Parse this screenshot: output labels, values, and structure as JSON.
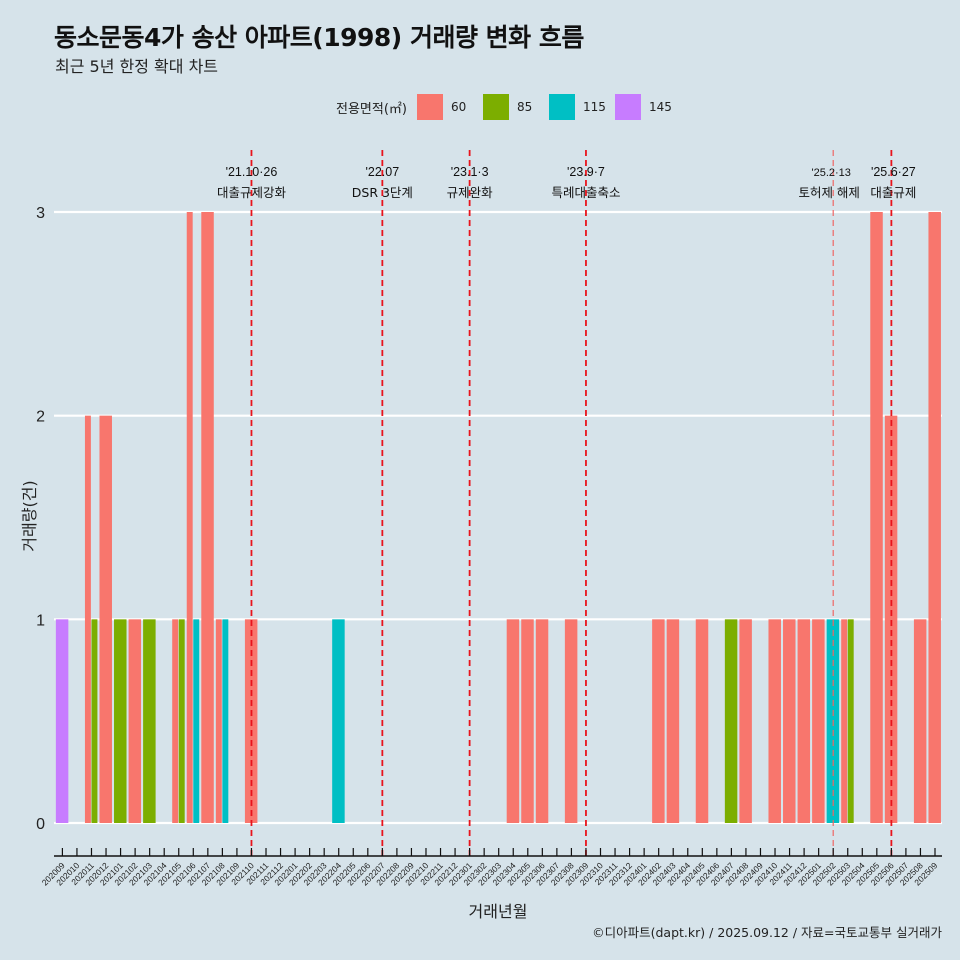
{
  "header": {
    "title": "동소문동4가 송산 아파트(1998) 거래량 변화 흐름",
    "subtitle": "최근 5년 한정 확대 차트"
  },
  "legend": {
    "title": "전용면적(㎡)",
    "items": [
      {
        "label": "60",
        "color": "#F8766D"
      },
      {
        "label": "85",
        "color": "#7CAE00"
      },
      {
        "label": "115",
        "color": "#00BFC4"
      },
      {
        "label": "145",
        "color": "#C77CFF"
      }
    ]
  },
  "footer": "©디아파트(dapt.kr) / 2025.09.12 / 자료=국토교통부 실거래가",
  "chart_data": {
    "type": "bar",
    "subtype": "dodged",
    "title": "동소문동4가 송산 아파트(1998) 거래량 변화 흐름",
    "subtitle": "최근 5년 한정 확대 차트",
    "xlabel": "거래년월",
    "ylabel": "거래량(건)",
    "ylim": [
      0,
      3
    ],
    "yticks": [
      0,
      1,
      2,
      3
    ],
    "grid": "horizontal",
    "legend_position": "top",
    "categories": [
      "202009",
      "202010",
      "202011",
      "202012",
      "202101",
      "202102",
      "202103",
      "202104",
      "202105",
      "202106",
      "202107",
      "202108",
      "202109",
      "202110",
      "202111",
      "202112",
      "202201",
      "202202",
      "202203",
      "202204",
      "202205",
      "202206",
      "202207",
      "202208",
      "202209",
      "202210",
      "202211",
      "202212",
      "202301",
      "202302",
      "202303",
      "202304",
      "202305",
      "202306",
      "202307",
      "202308",
      "202309",
      "202310",
      "202311",
      "202312",
      "202401",
      "202402",
      "202403",
      "202404",
      "202405",
      "202406",
      "202407",
      "202408",
      "202409",
      "202410",
      "202411",
      "202412",
      "202501",
      "202502",
      "202503",
      "202504",
      "202505",
      "202506",
      "202507",
      "202508",
      "202509"
    ],
    "series_order": [
      "60",
      "85",
      "115",
      "145"
    ],
    "points": [
      {
        "month": "202009",
        "area": "145",
        "count": 1
      },
      {
        "month": "202011",
        "area": "60",
        "count": 2
      },
      {
        "month": "202011",
        "area": "85",
        "count": 1
      },
      {
        "month": "202012",
        "area": "60",
        "count": 2
      },
      {
        "month": "202101",
        "area": "85",
        "count": 1
      },
      {
        "month": "202102",
        "area": "60",
        "count": 1
      },
      {
        "month": "202103",
        "area": "85",
        "count": 1
      },
      {
        "month": "202105",
        "area": "60",
        "count": 1
      },
      {
        "month": "202105",
        "area": "85",
        "count": 1
      },
      {
        "month": "202106",
        "area": "60",
        "count": 3
      },
      {
        "month": "202106",
        "area": "115",
        "count": 1
      },
      {
        "month": "202107",
        "area": "60",
        "count": 3
      },
      {
        "month": "202108",
        "area": "60",
        "count": 1
      },
      {
        "month": "202108",
        "area": "115",
        "count": 1
      },
      {
        "month": "202110",
        "area": "60",
        "count": 1
      },
      {
        "month": "202204",
        "area": "115",
        "count": 1
      },
      {
        "month": "202304",
        "area": "60",
        "count": 1
      },
      {
        "month": "202305",
        "area": "60",
        "count": 1
      },
      {
        "month": "202306",
        "area": "60",
        "count": 1
      },
      {
        "month": "202308",
        "area": "60",
        "count": 1
      },
      {
        "month": "202402",
        "area": "60",
        "count": 1
      },
      {
        "month": "202403",
        "area": "60",
        "count": 1
      },
      {
        "month": "202405",
        "area": "60",
        "count": 1
      },
      {
        "month": "202407",
        "area": "85",
        "count": 1
      },
      {
        "month": "202408",
        "area": "60",
        "count": 1
      },
      {
        "month": "202410",
        "area": "60",
        "count": 1
      },
      {
        "month": "202411",
        "area": "60",
        "count": 1
      },
      {
        "month": "202412",
        "area": "60",
        "count": 1
      },
      {
        "month": "202501",
        "area": "60",
        "count": 1
      },
      {
        "month": "202502",
        "area": "115",
        "count": 1
      },
      {
        "month": "202503",
        "area": "60",
        "count": 1
      },
      {
        "month": "202503",
        "area": "85",
        "count": 1
      },
      {
        "month": "202505",
        "area": "60",
        "count": 3
      },
      {
        "month": "202506",
        "area": "60",
        "count": 2
      },
      {
        "month": "202508",
        "area": "60",
        "count": 1
      },
      {
        "month": "202509",
        "area": "60",
        "count": 3
      }
    ],
    "annotations": [
      {
        "month": "202110",
        "date": "'21.10·26",
        "label": "대출규제강화",
        "style": "strong"
      },
      {
        "month": "202207",
        "date": "'22.07",
        "label": "DSR 3단계",
        "style": "strong"
      },
      {
        "month": "202301",
        "date": "'23.1·3",
        "label": "규제완화",
        "style": "strong"
      },
      {
        "month": "202309",
        "date": "'23.9·7",
        "label": "특례대출축소",
        "style": "strong"
      },
      {
        "month": "202502",
        "date": "'25.2·13",
        "label": "토허제 해제",
        "style": "light"
      },
      {
        "month": "202506",
        "date": "'25.6·27",
        "label": "대출규제",
        "style": "strong"
      }
    ]
  }
}
